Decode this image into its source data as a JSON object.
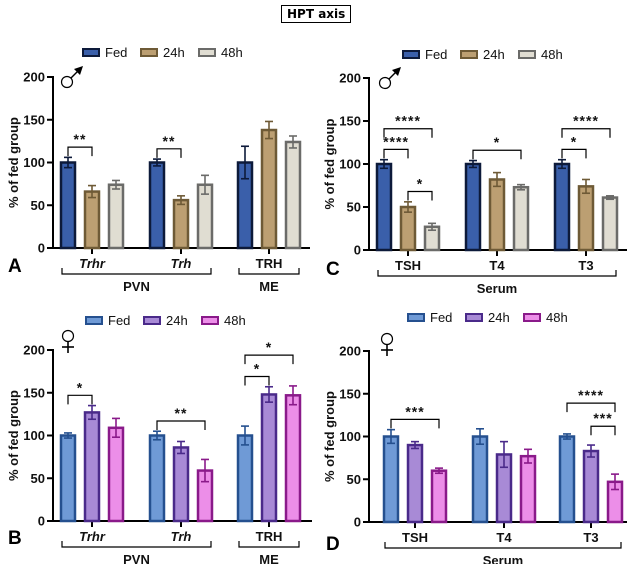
{
  "figure_title": "HPT axis",
  "chart_data": [
    {
      "panel": "A",
      "type": "bar",
      "sex": "male",
      "sex_symbol": "♂",
      "title": "",
      "ylabel": "% of fed group",
      "xlabel": "",
      "ylim": [
        0,
        200
      ],
      "yticks": [
        0,
        50,
        100,
        150,
        200
      ],
      "categories": [
        "Trhr",
        "Trh",
        "TRH"
      ],
      "categories_italic": [
        true,
        true,
        false
      ],
      "category_groups": [
        {
          "label": "PVN",
          "members": [
            "Trhr",
            "Trh"
          ]
        },
        {
          "label": "ME",
          "members": [
            "TRH"
          ]
        }
      ],
      "legend": [
        "Fed",
        "24h",
        "48h"
      ],
      "legend_position": "top",
      "colors": {
        "fill": [
          "#3a5faa",
          "#bc9f72",
          "#e0ddd2"
        ],
        "stroke": [
          "#0d1a3a",
          "#6e5a36",
          "#6b6b69"
        ]
      },
      "series": [
        {
          "name": "Fed",
          "values": [
            100,
            100,
            100
          ],
          "errors": [
            6,
            4,
            19
          ]
        },
        {
          "name": "24h",
          "values": [
            66,
            56,
            138
          ],
          "errors": [
            7,
            5,
            10
          ]
        },
        {
          "name": "48h",
          "values": [
            74,
            74,
            124
          ],
          "errors": [
            5,
            11,
            7
          ]
        }
      ],
      "significance": [
        {
          "category": 0,
          "from": 0,
          "to": 1,
          "label": "**",
          "level": 1
        },
        {
          "category": 1,
          "from": 0,
          "to": 1,
          "label": "**",
          "level": 1
        }
      ]
    },
    {
      "panel": "C",
      "type": "bar",
      "sex": "male",
      "sex_symbol": "♂",
      "title": "",
      "ylabel": "% of fed group",
      "xlabel": "",
      "ylim": [
        0,
        200
      ],
      "yticks": [
        0,
        50,
        100,
        150,
        200
      ],
      "categories": [
        "TSH",
        "T4",
        "T3"
      ],
      "categories_italic": [
        false,
        false,
        false
      ],
      "category_groups": [
        {
          "label": "Serum",
          "members": [
            "TSH",
            "T4",
            "T3"
          ]
        }
      ],
      "legend": [
        "Fed",
        "24h",
        "48h"
      ],
      "legend_position": "top",
      "colors": {
        "fill": [
          "#3a5faa",
          "#bc9f72",
          "#e0ddd2"
        ],
        "stroke": [
          "#0d1a3a",
          "#6e5a36",
          "#6b6b69"
        ]
      },
      "series": [
        {
          "name": "Fed",
          "values": [
            100,
            100,
            100
          ],
          "errors": [
            5,
            4,
            5
          ]
        },
        {
          "name": "24h",
          "values": [
            50,
            82,
            74
          ],
          "errors": [
            6,
            8,
            8
          ]
        },
        {
          "name": "48h",
          "values": [
            27,
            73,
            61
          ],
          "errors": [
            4,
            3,
            2
          ]
        }
      ],
      "significance": [
        {
          "category": 0,
          "from": 0,
          "to": 1,
          "label": "****",
          "level": 1
        },
        {
          "category": 0,
          "from": 0,
          "to": 2,
          "label": "****",
          "level": 2
        },
        {
          "category": 0,
          "from": 1,
          "to": 2,
          "label": "*",
          "level": 0
        },
        {
          "category": 1,
          "from": 0,
          "to": 2,
          "label": "*",
          "level": 1
        },
        {
          "category": 2,
          "from": 0,
          "to": 1,
          "label": "*",
          "level": 1
        },
        {
          "category": 2,
          "from": 0,
          "to": 2,
          "label": "****",
          "level": 2
        }
      ]
    },
    {
      "panel": "B",
      "type": "bar",
      "sex": "female",
      "sex_symbol": "♀",
      "title": "",
      "ylabel": "% of fed group",
      "xlabel": "",
      "ylim": [
        0,
        200
      ],
      "yticks": [
        0,
        50,
        100,
        150,
        200
      ],
      "categories": [
        "Trhr",
        "Trh",
        "TRH"
      ],
      "categories_italic": [
        true,
        true,
        false
      ],
      "category_groups": [
        {
          "label": "PVN",
          "members": [
            "Trhr",
            "Trh"
          ]
        },
        {
          "label": "ME",
          "members": [
            "TRH"
          ]
        }
      ],
      "legend": [
        "Fed",
        "24h",
        "48h"
      ],
      "legend_position": "top",
      "colors": {
        "fill": [
          "#6f9ad6",
          "#a88ad6",
          "#ec8ee8"
        ],
        "stroke": [
          "#25508f",
          "#4a2a8a",
          "#8a1a8a"
        ]
      },
      "series": [
        {
          "name": "Fed",
          "values": [
            100,
            100,
            100
          ],
          "errors": [
            3,
            5,
            11
          ]
        },
        {
          "name": "24h",
          "values": [
            127,
            86,
            148
          ],
          "errors": [
            8,
            7,
            9
          ]
        },
        {
          "name": "48h",
          "values": [
            109,
            59,
            147
          ],
          "errors": [
            11,
            13,
            11
          ]
        }
      ],
      "significance": [
        {
          "category": 0,
          "from": 0,
          "to": 1,
          "label": "*",
          "level": 1
        },
        {
          "category": 1,
          "from": 0,
          "to": 2,
          "label": "**",
          "level": 1
        },
        {
          "category": 2,
          "from": 0,
          "to": 1,
          "label": "*",
          "level": 1
        },
        {
          "category": 2,
          "from": 0,
          "to": 2,
          "label": "*",
          "level": 2
        }
      ]
    },
    {
      "panel": "D",
      "type": "bar",
      "sex": "female",
      "sex_symbol": "♀",
      "title": "",
      "ylabel": "% of fed group",
      "xlabel": "",
      "ylim": [
        0,
        200
      ],
      "yticks": [
        0,
        50,
        100,
        150,
        200
      ],
      "categories": [
        "TSH",
        "T4",
        "T3"
      ],
      "categories_italic": [
        false,
        false,
        false
      ],
      "category_groups": [
        {
          "label": "Serum",
          "members": [
            "TSH",
            "T4",
            "T3"
          ]
        }
      ],
      "legend": [
        "Fed",
        "24h",
        "48h"
      ],
      "legend_position": "top",
      "colors": {
        "fill": [
          "#6f9ad6",
          "#a88ad6",
          "#ec8ee8"
        ],
        "stroke": [
          "#25508f",
          "#4a2a8a",
          "#8a1a8a"
        ]
      },
      "series": [
        {
          "name": "Fed",
          "values": [
            100,
            100,
            100
          ],
          "errors": [
            8,
            9,
            3
          ]
        },
        {
          "name": "24h",
          "values": [
            90,
            79,
            83
          ],
          "errors": [
            4,
            15,
            7
          ]
        },
        {
          "name": "48h",
          "values": [
            60,
            77,
            47
          ],
          "errors": [
            3,
            8,
            9
          ]
        }
      ],
      "significance": [
        {
          "category": 0,
          "from": 0,
          "to": 2,
          "label": "***",
          "level": 1
        },
        {
          "category": 2,
          "from": 1,
          "to": 2,
          "label": "***",
          "level": 1
        },
        {
          "category": 2,
          "from": 0,
          "to": 2,
          "label": "****",
          "level": 2
        }
      ]
    }
  ]
}
